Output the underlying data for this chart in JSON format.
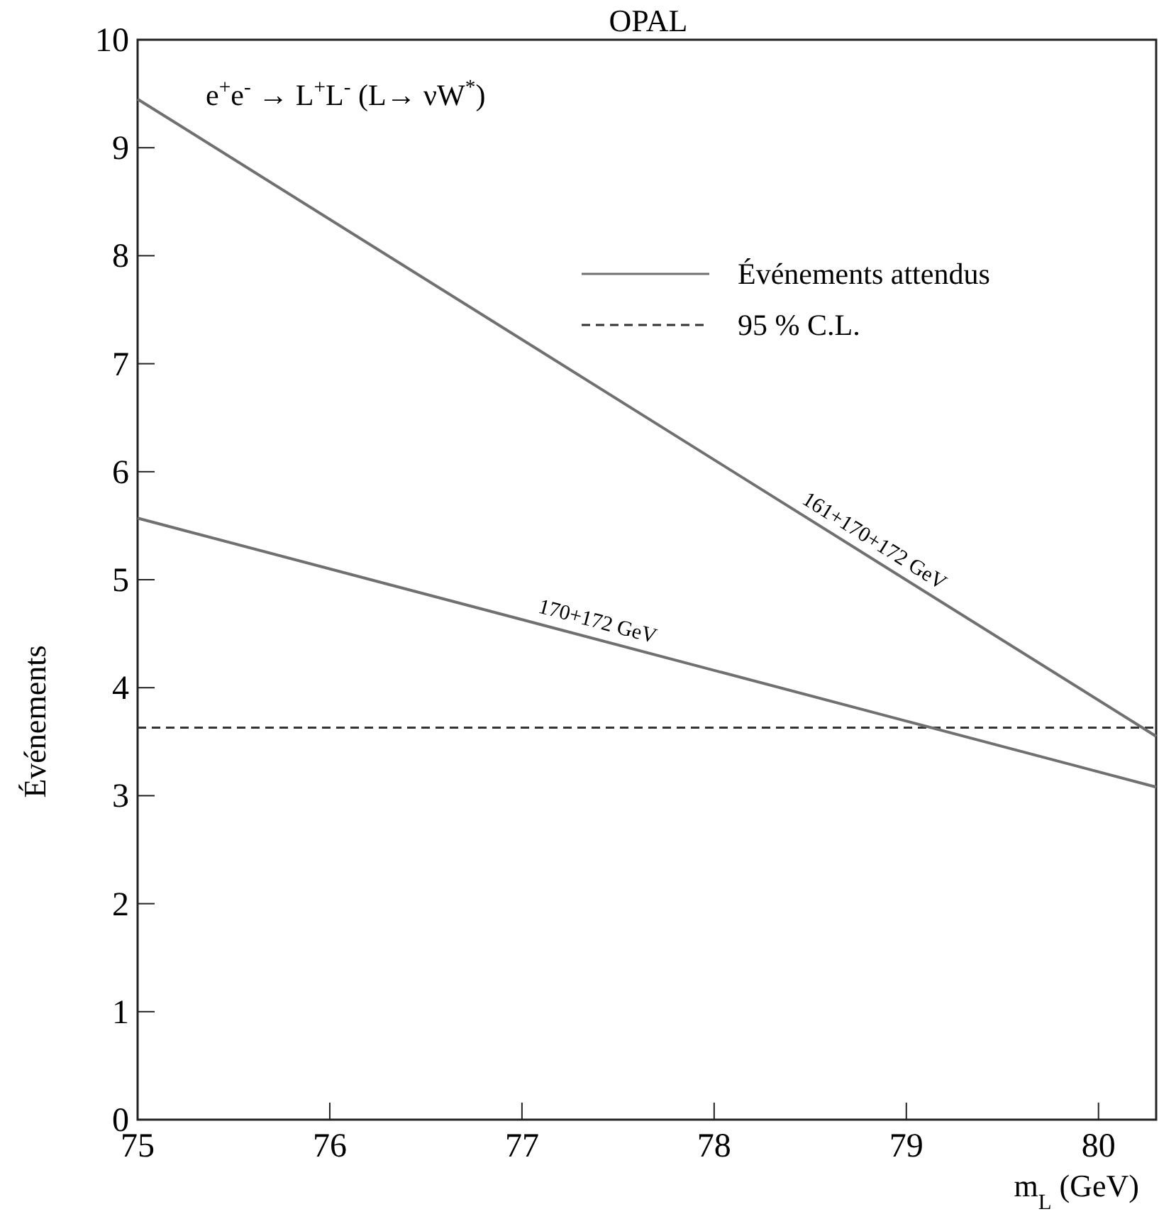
{
  "chart_data": {
    "type": "line",
    "title": "OPAL",
    "xlabel": "m$_{L}$ (GeV)",
    "ylabel": "Événements",
    "xlim": [
      75,
      80.3
    ],
    "xticks": [
      75,
      76,
      77,
      78,
      79,
      80
    ],
    "ylim": [
      0,
      10
    ],
    "yticks": [
      0,
      1,
      2,
      3,
      4,
      5,
      6,
      7,
      8,
      9,
      10
    ],
    "x": [
      75,
      80.3
    ],
    "series": [
      {
        "name": "161+170+172 GeV",
        "color": "#707070",
        "values": [
          9.45,
          3.55
        ]
      },
      {
        "name": "170+172 GeV",
        "color": "#707070",
        "values": [
          5.57,
          3.08
        ]
      }
    ],
    "ref_lines": [
      {
        "axis": "y",
        "value": 3.63,
        "label": "95 % C.L.",
        "color": "#333333",
        "line_style": "dashed"
      }
    ],
    "annotations": [
      "e$^{+}$e$^{-}$ → L$^{+}$L$^{-}$  (L→ νW$^{*}$)",
      "Événements attendus"
    ],
    "legend": "top right",
    "grid": false,
    "line_style": "solid",
    "marker": "none"
  }
}
